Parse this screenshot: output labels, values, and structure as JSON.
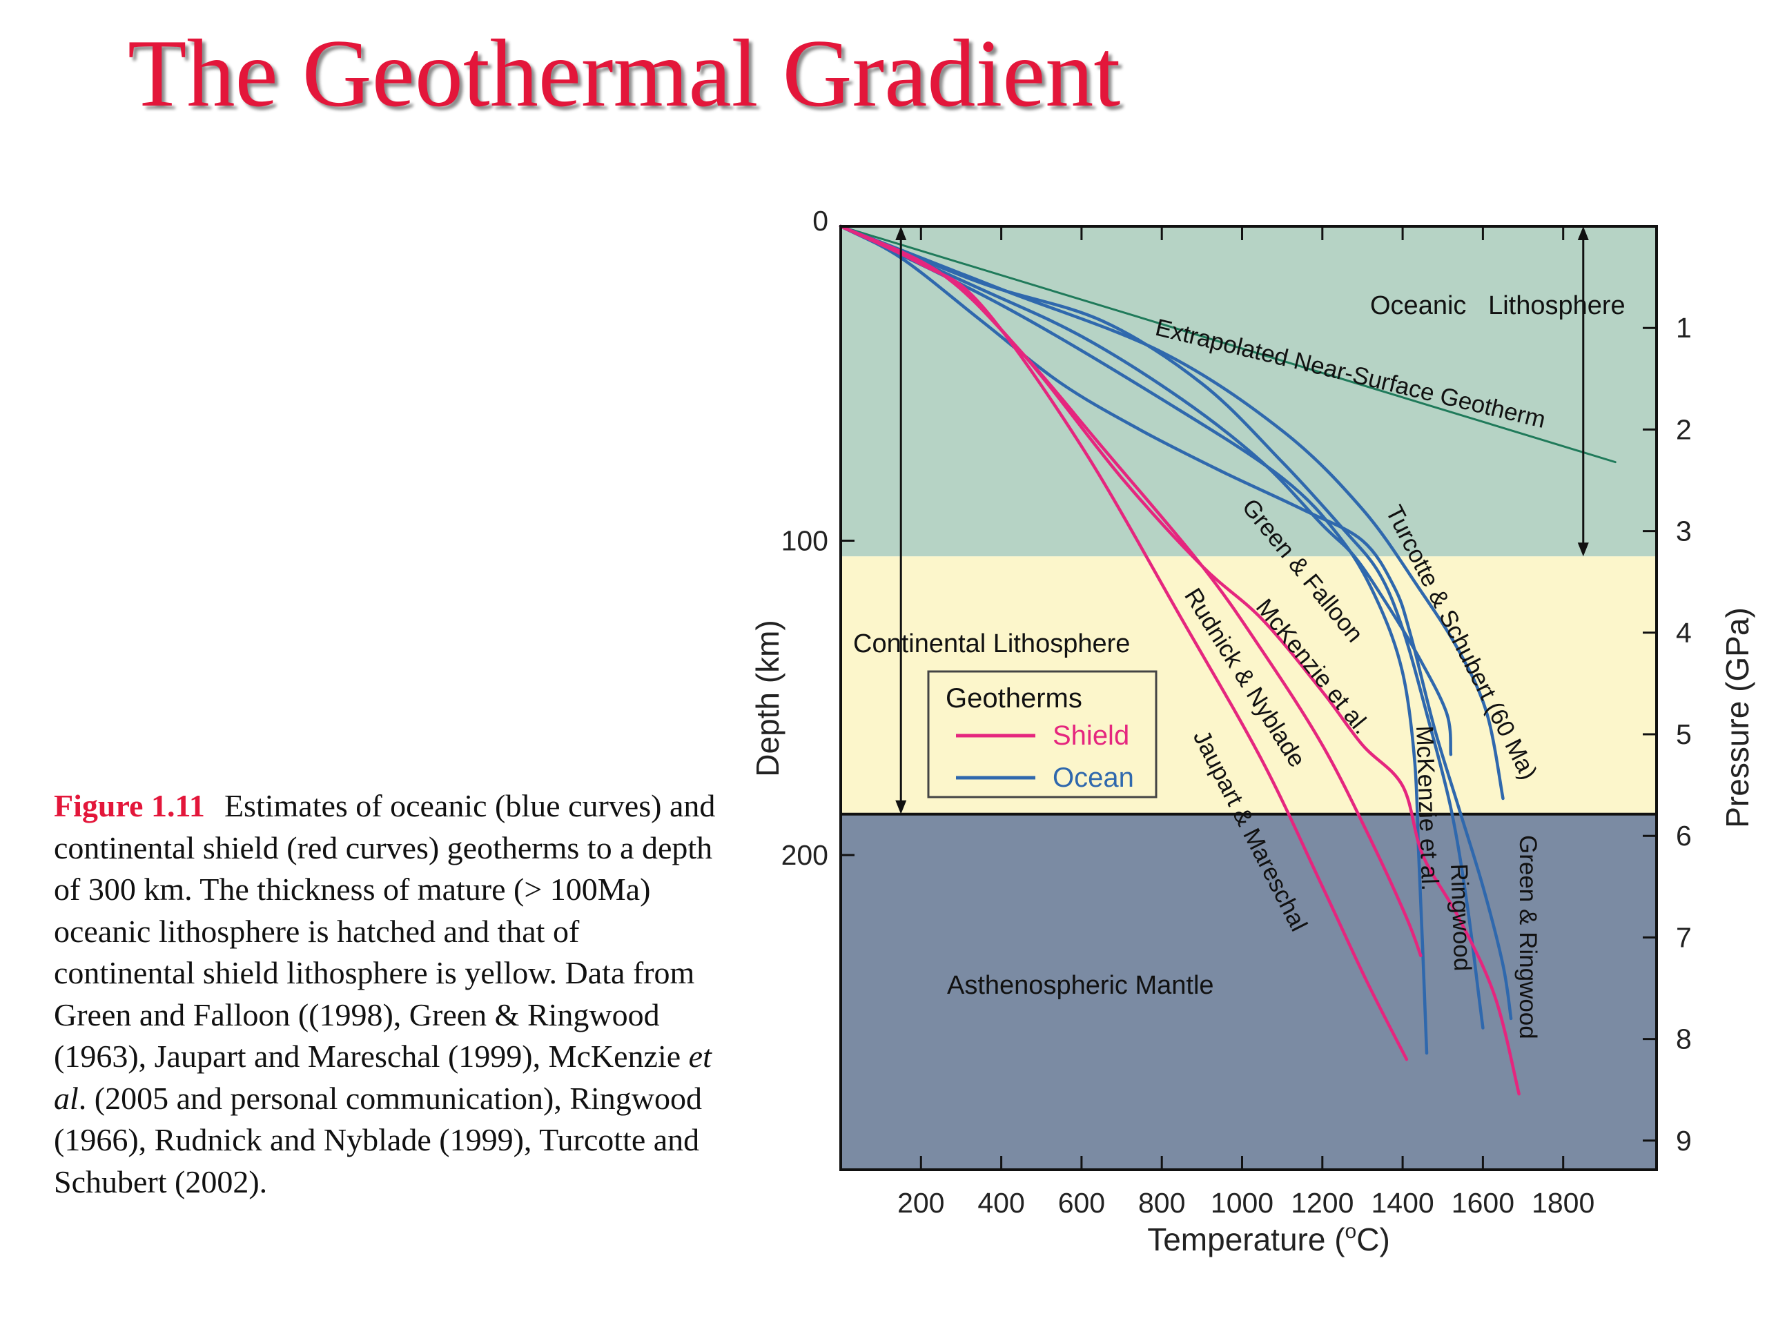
{
  "title": "The Geothermal Gradient",
  "caption": {
    "label": "Figure 1.11",
    "text_part1": "Estimates of oceanic (blue curves) and continental shield (red curves) geotherms to a depth of 300 km. The thickness of mature (> 100Ma) oceanic lithosphere is hatched and that of continental shield lithosphere is yellow. Data from Green and Falloon ((1998), Green & Ringwood (1963), Jaupart and Mareschal (1999), McKenzie ",
    "text_italic": "et al",
    "text_part2": ". (2005 and personal communication), Ringwood (1966), Rudnick and Nyblade (1999), Turcotte and Schubert (2002)."
  },
  "colors": {
    "title": "#e3163a",
    "shield": "#e5267e",
    "ocean": "#2f68ad",
    "near_surface": "#1f7a5a",
    "oceanic_lithosphere_fill": "#b6d3c5",
    "continental_lithosphere_fill": "#fcf6cb",
    "asthenosphere_fill": "#7b8ba3"
  },
  "chart_data": {
    "type": "line",
    "xlabel": "Temperature (",
    "xlabel_sup": "o",
    "xlabel_end": "C)",
    "ylabel": "Depth (km)",
    "y2label": "Pressure (GPa)",
    "xlim": [
      0,
      2000
    ],
    "ylim": [
      300,
      0
    ],
    "x_ticks": [
      200,
      400,
      600,
      800,
      1000,
      1200,
      1400,
      1600,
      1800
    ],
    "y_ticks": [
      0,
      100,
      200
    ],
    "y2_ticks": [
      1,
      2,
      3,
      4,
      5,
      6,
      7,
      8,
      9
    ],
    "regions": [
      {
        "label": "Oceanic   Lithosphere",
        "depth_from": 0,
        "depth_to": 105,
        "key": "oceanic_lithosphere_fill"
      },
      {
        "label": "Continental Lithosphere",
        "depth_from": 105,
        "depth_to": 187,
        "key": "continental_lithosphere_fill"
      },
      {
        "label": "Asthenospheric Mantle",
        "depth_from": 187,
        "depth_to": 300,
        "key": "asthenosphere_fill"
      }
    ],
    "legend": {
      "title": "Geotherms",
      "entries": [
        {
          "label": "Shield",
          "key": "shield"
        },
        {
          "label": "Ocean",
          "key": "ocean"
        }
      ]
    },
    "arrows": [
      {
        "x": 150,
        "from": 0,
        "to": 187
      },
      {
        "x": 1850,
        "from": 0,
        "to": 105
      }
    ],
    "series": [
      {
        "name": "Extrapolated Near-Surface Geotherm",
        "group": "near_surface",
        "points": [
          [
            0,
            0
          ],
          [
            1930,
            75
          ]
        ]
      },
      {
        "name": "Turcotte & Schubert (60 Ma)",
        "group": "ocean",
        "points": [
          [
            0,
            0
          ],
          [
            400,
            20
          ],
          [
            800,
            40
          ],
          [
            1100,
            65
          ],
          [
            1300,
            90
          ],
          [
            1440,
            115
          ],
          [
            1540,
            135
          ],
          [
            1610,
            155
          ],
          [
            1650,
            182
          ]
        ]
      },
      {
        "name": "Green & Falloon",
        "group": "ocean",
        "points": [
          [
            0,
            0
          ],
          [
            350,
            20
          ],
          [
            600,
            35
          ],
          [
            850,
            55
          ],
          [
            1050,
            75
          ],
          [
            1200,
            95
          ],
          [
            1280,
            105
          ],
          [
            1360,
            120
          ],
          [
            1440,
            137
          ],
          [
            1510,
            155
          ],
          [
            1520,
            168
          ]
        ]
      },
      {
        "name": "McKenzie et al.",
        "group": "ocean",
        "points": [
          [
            0,
            0
          ],
          [
            400,
            25
          ],
          [
            800,
            55
          ],
          [
            1100,
            80
          ],
          [
            1250,
            100
          ],
          [
            1340,
            120
          ],
          [
            1400,
            142
          ],
          [
            1430,
            170
          ],
          [
            1440,
            200
          ],
          [
            1450,
            230
          ],
          [
            1460,
            263
          ]
        ]
      },
      {
        "name": "Ringwood",
        "group": "ocean",
        "points": [
          [
            0,
            0
          ],
          [
            350,
            18
          ],
          [
            650,
            30
          ],
          [
            900,
            50
          ],
          [
            1100,
            75
          ],
          [
            1250,
            96
          ],
          [
            1340,
            110
          ],
          [
            1400,
            128
          ],
          [
            1460,
            155
          ],
          [
            1520,
            185
          ],
          [
            1560,
            215
          ],
          [
            1590,
            245
          ],
          [
            1600,
            255
          ]
        ]
      },
      {
        "name": "Green & Ringwood",
        "group": "ocean",
        "points": [
          [
            0,
            0
          ],
          [
            150,
            10
          ],
          [
            350,
            30
          ],
          [
            550,
            50
          ],
          [
            750,
            65
          ],
          [
            950,
            78
          ],
          [
            1150,
            90
          ],
          [
            1300,
            100
          ],
          [
            1380,
            115
          ],
          [
            1420,
            130
          ],
          [
            1480,
            160
          ],
          [
            1540,
            185
          ],
          [
            1600,
            210
          ],
          [
            1650,
            235
          ],
          [
            1670,
            252
          ]
        ]
      },
      {
        "name": "Jaupart & Mareschal",
        "group": "shield",
        "points": [
          [
            0,
            0
          ],
          [
            200,
            12
          ],
          [
            350,
            25
          ],
          [
            600,
            70
          ],
          [
            850,
            125
          ],
          [
            1050,
            170
          ],
          [
            1200,
            210
          ],
          [
            1310,
            240
          ],
          [
            1410,
            265
          ]
        ]
      },
      {
        "name": "Rudnick & Nyblade",
        "group": "shield",
        "points": [
          [
            0,
            0
          ],
          [
            250,
            15
          ],
          [
            450,
            40
          ],
          [
            650,
            70
          ],
          [
            900,
            108
          ],
          [
            1050,
            135
          ],
          [
            1200,
            165
          ],
          [
            1320,
            195
          ],
          [
            1410,
            220
          ],
          [
            1445,
            232
          ]
        ]
      },
      {
        "name": "McKenzie et al.",
        "group": "shield",
        "points": [
          [
            0,
            0
          ],
          [
            250,
            15
          ],
          [
            450,
            40
          ],
          [
            700,
            80
          ],
          [
            900,
            108
          ],
          [
            1050,
            125
          ],
          [
            1200,
            148
          ],
          [
            1300,
            165
          ],
          [
            1400,
            178
          ],
          [
            1450,
            200
          ],
          [
            1540,
            220
          ],
          [
            1630,
            245
          ],
          [
            1690,
            276
          ]
        ]
      }
    ],
    "curve_labels": [
      {
        "text": "Extrapolated Near-Surface Geotherm",
        "group": "near_surface"
      },
      {
        "text": "Green & Falloon",
        "group": "ocean"
      },
      {
        "text": "Turcotte & Schubert (60 Ma)",
        "group": "ocean"
      },
      {
        "text": "McKenzie et al.",
        "group": "shield"
      },
      {
        "text": "Rudnick & Nyblade",
        "group": "shield"
      },
      {
        "text": "Jaupart & Mareschal",
        "group": "shield"
      },
      {
        "text": "McKenzie et al.",
        "group": "ocean"
      },
      {
        "text": "Ringwood",
        "group": "ocean"
      },
      {
        "text": "Green & Ringwood",
        "group": "ocean"
      }
    ]
  }
}
